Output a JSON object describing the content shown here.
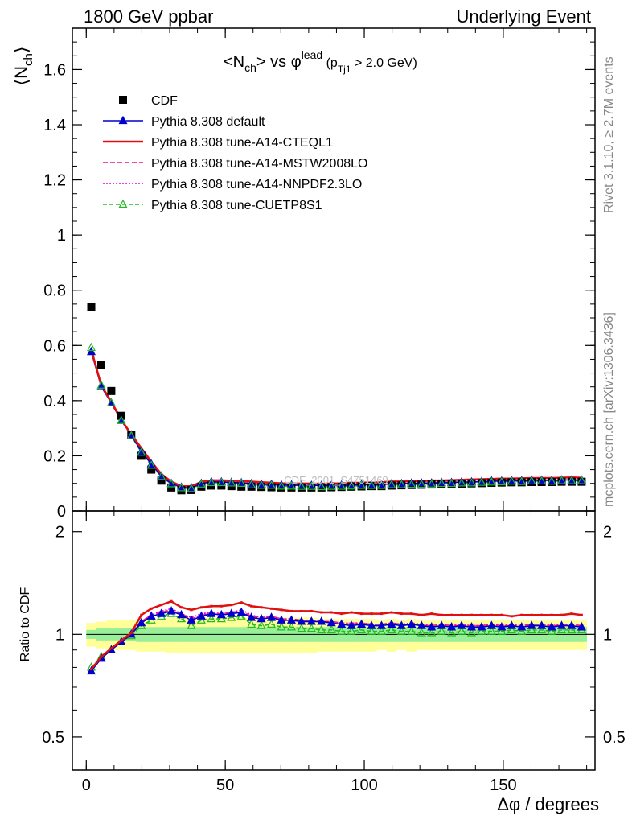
{
  "header": {
    "left": "1800 GeV ppbar",
    "right": "Underlying Event"
  },
  "side": {
    "rivet": "Rivet 3.1.10, ≥ 2.7M events",
    "mcplots": "mcplots.cern.ch [arXiv:1306.3436]"
  },
  "watermark": "CDF_2001_S4751469",
  "plot_title": {
    "pre": "<N",
    "sub1": "ch",
    "mid": "> vs φ",
    "sup": "lead",
    "paren_open": " (p",
    "sub2": "Tj1",
    "tail": " > 2.0 GeV)"
  },
  "axes": {
    "ylabel_top": "⟨N",
    "ylabel_top_sub": "ch",
    "ylabel_top_close": "⟩",
    "ylabel_bottom": "Ratio to CDF",
    "xlabel": "Δφ / degrees",
    "top_yticks": [
      "0",
      "0.2",
      "0.4",
      "0.6",
      "0.8",
      "1",
      "1.2",
      "1.4",
      "1.6"
    ],
    "bottom_yticks": [
      "0.5",
      "1",
      "2"
    ],
    "xticks": [
      "0",
      "50",
      "100",
      "150"
    ]
  },
  "legend": [
    {
      "name": "CDF",
      "color": "#000000",
      "style": "data"
    },
    {
      "name": "Pythia 8.308 default",
      "color": "#0000cc",
      "style": "solid-tri"
    },
    {
      "name": "Pythia 8.308 tune-A14-CTEQL1",
      "color": "#e01010",
      "style": "solid"
    },
    {
      "name": "Pythia 8.308 tune-A14-MSTW2008LO",
      "color": "#ee1199",
      "style": "dashed"
    },
    {
      "name": "Pythia 8.308 tune-A14-NNPDF2.3LO",
      "color": "#dd00dd",
      "style": "dotted"
    },
    {
      "name": "Pythia 8.308 tune-CUETP8S1",
      "color": "#22bb22",
      "style": "dashed-opentri"
    }
  ],
  "chart_data": {
    "type": "line",
    "x": [
      1.8,
      5.4,
      9,
      12.6,
      16.2,
      19.8,
      23.4,
      27,
      30.6,
      34.2,
      37.8,
      41.4,
      45,
      48.6,
      52.2,
      55.8,
      59.4,
      63,
      66.6,
      70.2,
      73.8,
      77.4,
      81,
      84.6,
      88.2,
      91.8,
      95.4,
      99,
      102.6,
      106.2,
      109.8,
      113.4,
      117,
      120.6,
      124.2,
      127.8,
      131.4,
      135,
      138.6,
      142.2,
      145.8,
      149.4,
      153,
      156.6,
      160.2,
      163.8,
      167.4,
      171,
      174.6,
      178.2
    ],
    "xlim": [
      -5,
      183
    ],
    "ylim_top": [
      0,
      1.75
    ],
    "ylim_ratio": [
      0.4,
      2.3
    ],
    "ratio_log": true,
    "cdf": [
      0.74,
      0.53,
      0.435,
      0.345,
      0.275,
      0.2,
      0.15,
      0.11,
      0.085,
      0.075,
      0.076,
      0.088,
      0.092,
      0.092,
      0.09,
      0.088,
      0.088,
      0.087,
      0.086,
      0.085,
      0.085,
      0.085,
      0.085,
      0.085,
      0.086,
      0.087,
      0.088,
      0.089,
      0.09,
      0.09,
      0.092,
      0.093,
      0.094,
      0.095,
      0.096,
      0.097,
      0.098,
      0.099,
      0.1,
      0.101,
      0.102,
      0.103,
      0.104,
      0.104,
      0.105,
      0.105,
      0.105,
      0.106,
      0.106,
      0.106
    ],
    "cdf_err_inner": [
      0.03,
      0.04,
      0.04,
      0.045,
      0.045,
      0.05,
      0.05,
      0.05,
      0.05,
      0.05,
      0.05,
      0.05,
      0.05,
      0.05,
      0.05,
      0.05,
      0.05,
      0.05,
      0.05,
      0.05,
      0.05,
      0.05,
      0.05,
      0.05,
      0.05,
      0.05,
      0.05,
      0.05,
      0.05,
      0.05,
      0.05,
      0.05,
      0.05,
      0.05,
      0.05,
      0.05,
      0.05,
      0.05,
      0.05,
      0.05,
      0.05,
      0.05,
      0.05,
      0.05,
      0.05,
      0.05,
      0.05,
      0.05,
      0.05,
      0.05
    ],
    "cdf_err_outer": [
      0.08,
      0.09,
      0.1,
      0.1,
      0.1,
      0.11,
      0.11,
      0.11,
      0.12,
      0.12,
      0.12,
      0.12,
      0.12,
      0.12,
      0.12,
      0.12,
      0.12,
      0.12,
      0.12,
      0.12,
      0.12,
      0.12,
      0.12,
      0.11,
      0.11,
      0.11,
      0.11,
      0.11,
      0.11,
      0.1,
      0.11,
      0.1,
      0.11,
      0.1,
      0.1,
      0.1,
      0.1,
      0.1,
      0.1,
      0.1,
      0.1,
      0.1,
      0.1,
      0.1,
      0.1,
      0.1,
      0.1,
      0.1,
      0.1,
      0.1
    ],
    "series": [
      {
        "name": "Pythia 8.308 default",
        "ratio": [
          0.78,
          0.85,
          0.9,
          0.95,
          1.0,
          1.08,
          1.13,
          1.15,
          1.17,
          1.14,
          1.1,
          1.13,
          1.15,
          1.14,
          1.15,
          1.16,
          1.12,
          1.11,
          1.12,
          1.1,
          1.1,
          1.09,
          1.09,
          1.09,
          1.08,
          1.07,
          1.06,
          1.07,
          1.06,
          1.06,
          1.07,
          1.06,
          1.07,
          1.06,
          1.05,
          1.06,
          1.05,
          1.06,
          1.05,
          1.05,
          1.06,
          1.05,
          1.06,
          1.05,
          1.06,
          1.06,
          1.05,
          1.06,
          1.06,
          1.05
        ]
      },
      {
        "name": "Pythia 8.308 tune-A14-CTEQL1",
        "ratio": [
          0.79,
          0.86,
          0.91,
          0.96,
          1.01,
          1.14,
          1.19,
          1.22,
          1.25,
          1.2,
          1.18,
          1.2,
          1.21,
          1.21,
          1.22,
          1.24,
          1.21,
          1.2,
          1.19,
          1.18,
          1.17,
          1.17,
          1.17,
          1.16,
          1.16,
          1.15,
          1.16,
          1.15,
          1.15,
          1.15,
          1.16,
          1.15,
          1.15,
          1.14,
          1.15,
          1.14,
          1.14,
          1.14,
          1.14,
          1.14,
          1.14,
          1.14,
          1.13,
          1.14,
          1.14,
          1.14,
          1.14,
          1.14,
          1.15,
          1.14
        ]
      },
      {
        "name": "Pythia 8.308 tune-A14-MSTW2008LO",
        "ratio": [
          0.79,
          0.86,
          0.91,
          0.96,
          1.0,
          1.09,
          1.14,
          1.16,
          1.18,
          1.15,
          1.11,
          1.14,
          1.15,
          1.15,
          1.16,
          1.17,
          1.13,
          1.12,
          1.13,
          1.11,
          1.11,
          1.1,
          1.1,
          1.09,
          1.09,
          1.08,
          1.07,
          1.08,
          1.07,
          1.07,
          1.08,
          1.07,
          1.07,
          1.06,
          1.06,
          1.07,
          1.06,
          1.06,
          1.06,
          1.06,
          1.07,
          1.06,
          1.06,
          1.06,
          1.07,
          1.07,
          1.06,
          1.06,
          1.07,
          1.06
        ]
      },
      {
        "name": "Pythia 8.308 tune-A14-NNPDF2.3LO",
        "ratio": [
          0.79,
          0.86,
          0.91,
          0.96,
          1.0,
          1.09,
          1.14,
          1.17,
          1.19,
          1.15,
          1.12,
          1.15,
          1.16,
          1.15,
          1.16,
          1.18,
          1.14,
          1.12,
          1.13,
          1.11,
          1.11,
          1.1,
          1.1,
          1.09,
          1.09,
          1.08,
          1.08,
          1.08,
          1.07,
          1.07,
          1.08,
          1.07,
          1.08,
          1.07,
          1.06,
          1.07,
          1.06,
          1.07,
          1.06,
          1.06,
          1.07,
          1.06,
          1.07,
          1.06,
          1.07,
          1.07,
          1.06,
          1.07,
          1.07,
          1.06
        ]
      },
      {
        "name": "Pythia 8.308 tune-CUETP8S1",
        "ratio": [
          0.8,
          0.86,
          0.9,
          0.95,
          0.99,
          1.06,
          1.1,
          1.13,
          1.15,
          1.11,
          1.06,
          1.1,
          1.11,
          1.11,
          1.12,
          1.13,
          1.07,
          1.06,
          1.07,
          1.05,
          1.05,
          1.04,
          1.04,
          1.03,
          1.03,
          1.02,
          1.02,
          1.03,
          1.02,
          1.02,
          1.03,
          1.02,
          1.02,
          1.01,
          1.01,
          1.02,
          1.01,
          1.02,
          1.01,
          1.02,
          1.02,
          1.02,
          1.03,
          1.02,
          1.03,
          1.03,
          1.02,
          1.03,
          1.03,
          1.03
        ]
      }
    ]
  }
}
